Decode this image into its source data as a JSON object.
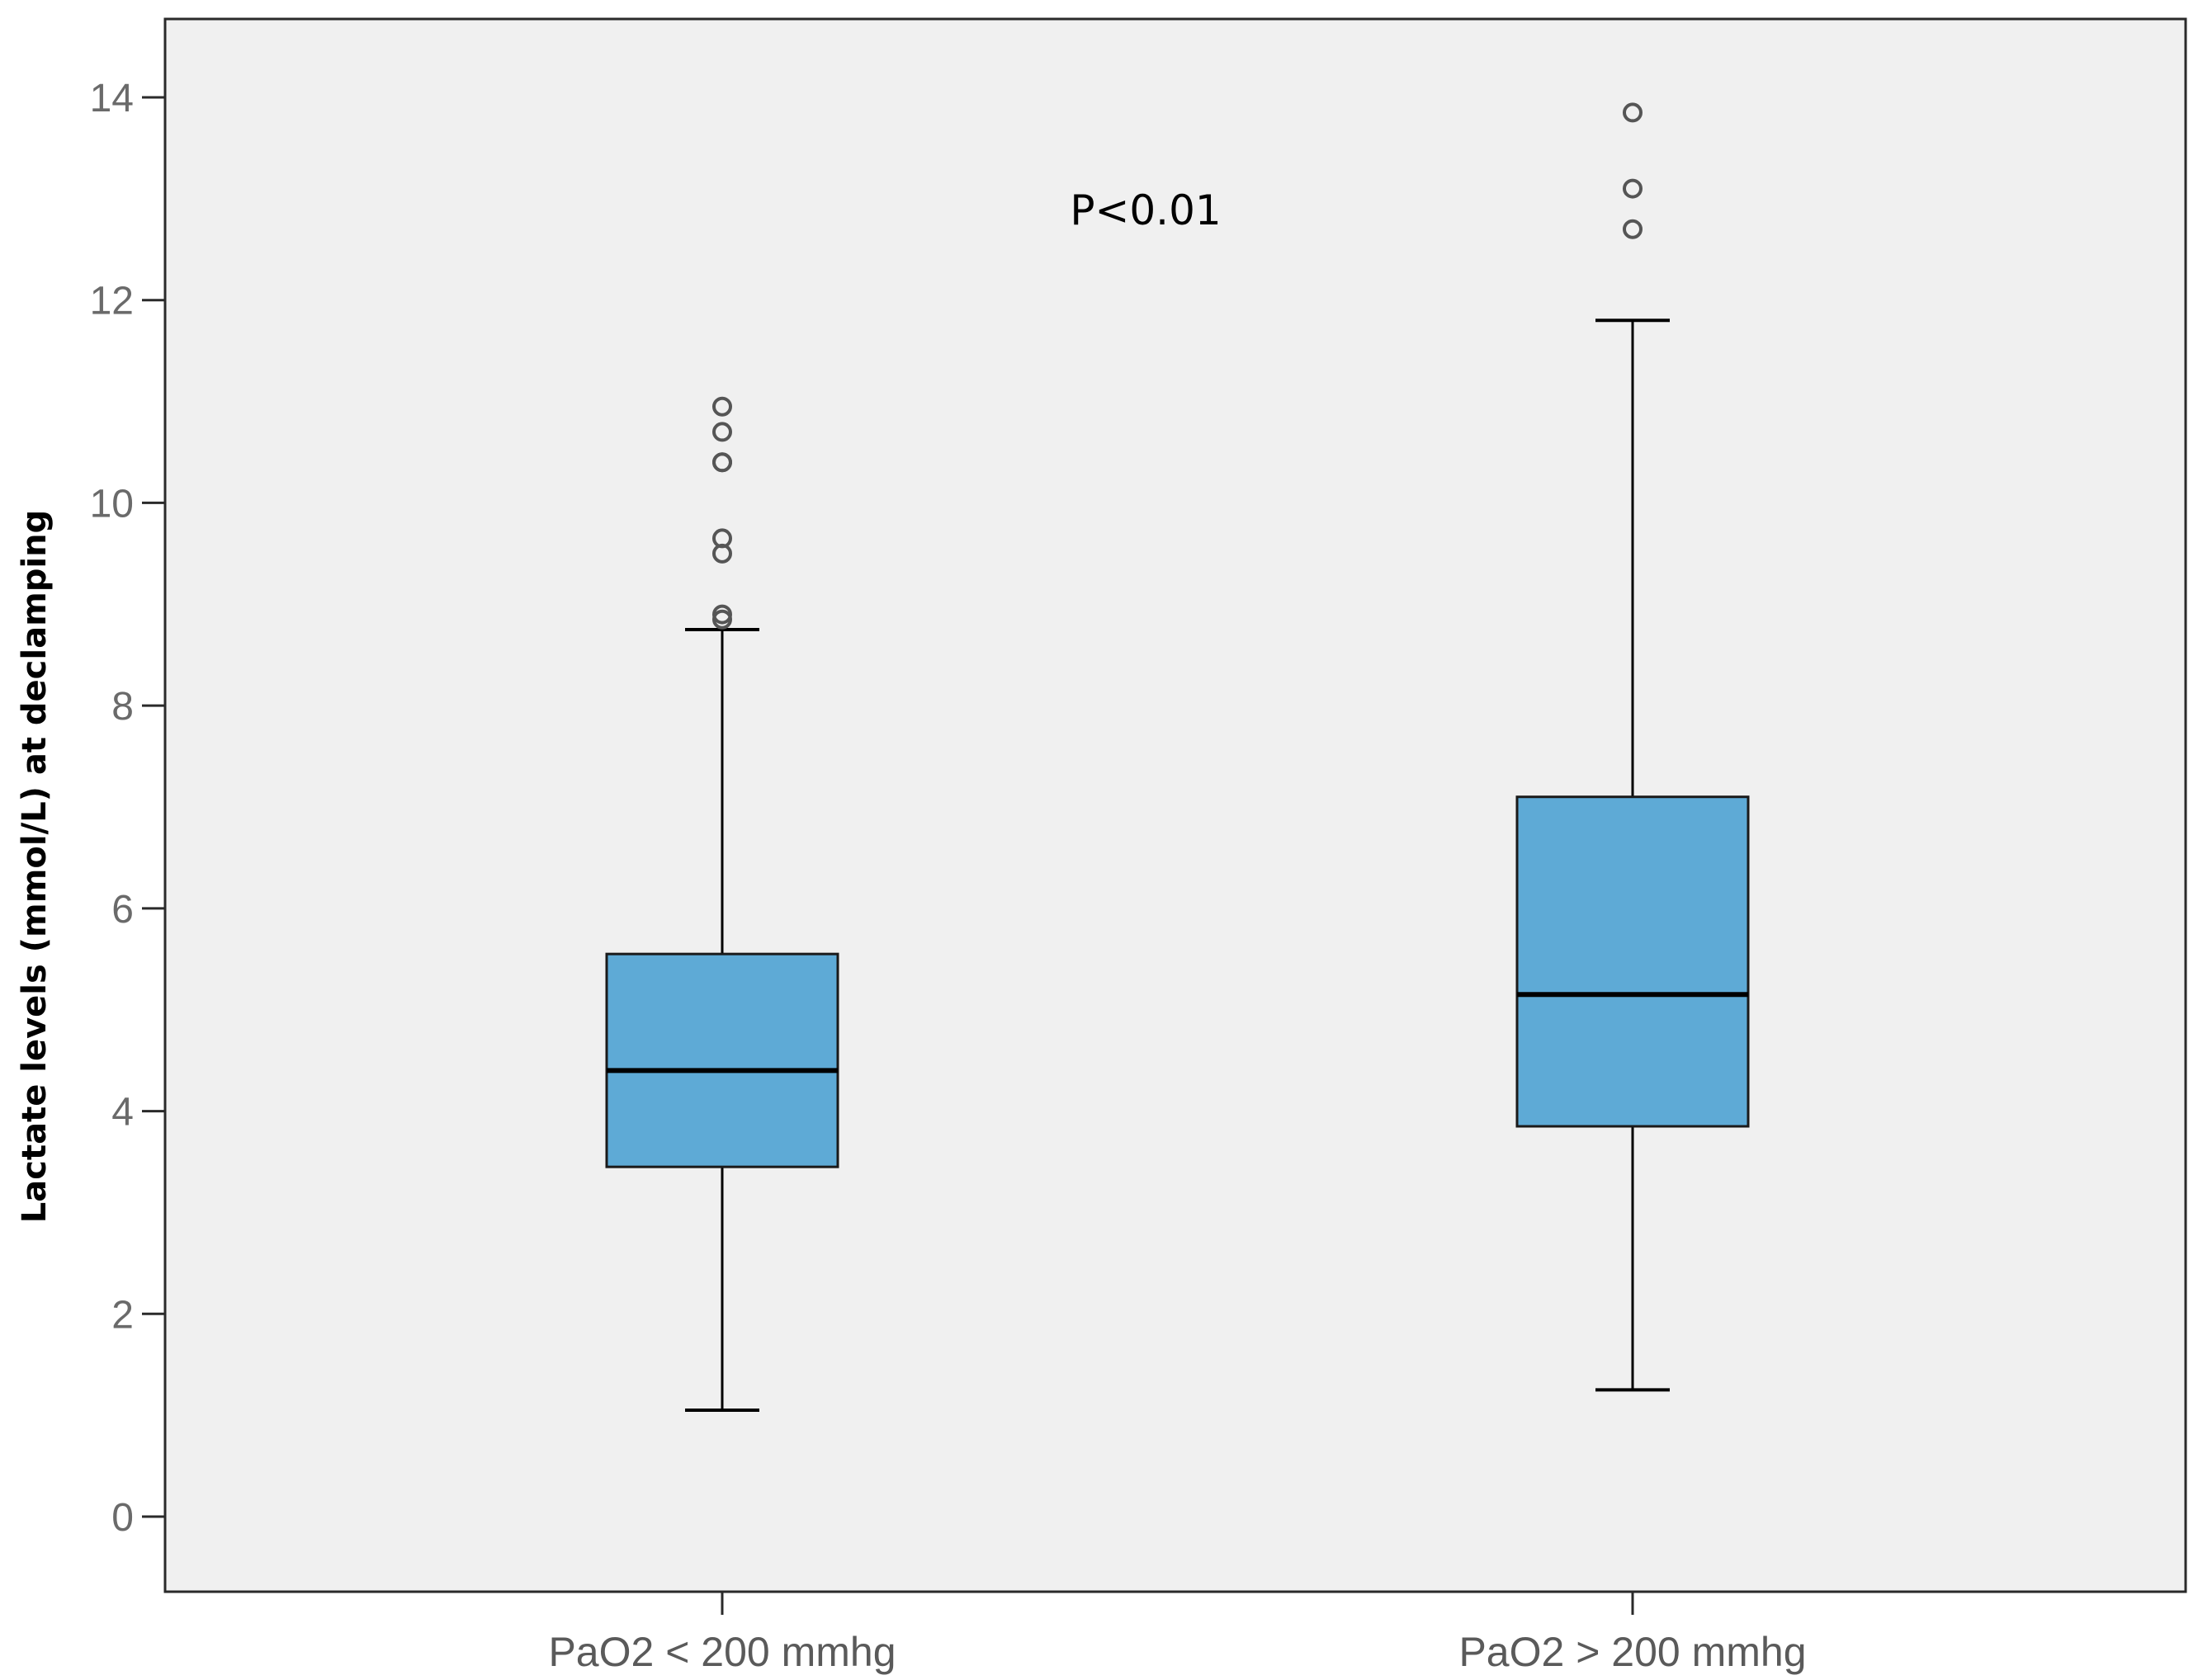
{
  "chart_data": {
    "type": "box",
    "title": "",
    "xlabel": "",
    "ylabel": "Lactate levels  (mmol/L) at declamping",
    "ylim": [
      0,
      14.5
    ],
    "yticks": [
      0,
      2,
      4,
      6,
      8,
      10,
      12,
      14
    ],
    "ytick_labels": [
      "0",
      "2",
      "4",
      "6",
      "8",
      "10",
      "12",
      "14"
    ],
    "grid": false,
    "annotation": "P<0.01",
    "colors": {
      "box_fill": "#5eaad6",
      "plot_background": "#f0f0f0",
      "line": "#000000",
      "outlier": "#555555"
    },
    "categories": [
      "PaO2 < 200 mmhg",
      "PaO2 > 200 mmhg"
    ],
    "boxes": [
      {
        "category": "PaO2 < 200 mmhg",
        "whisker_low": 1.05,
        "q1": 3.45,
        "median": 4.4,
        "q3": 5.55,
        "whisker_high": 8.75,
        "outliers": [
          10.95,
          10.7,
          10.4,
          10.4,
          9.65,
          9.5,
          8.9,
          8.85
        ]
      },
      {
        "category": "PaO2 > 200 mmhg",
        "whisker_low": 1.25,
        "q1": 3.85,
        "median": 5.15,
        "q3": 7.1,
        "whisker_high": 11.8,
        "outliers": [
          13.85,
          13.1,
          12.7
        ]
      }
    ]
  }
}
